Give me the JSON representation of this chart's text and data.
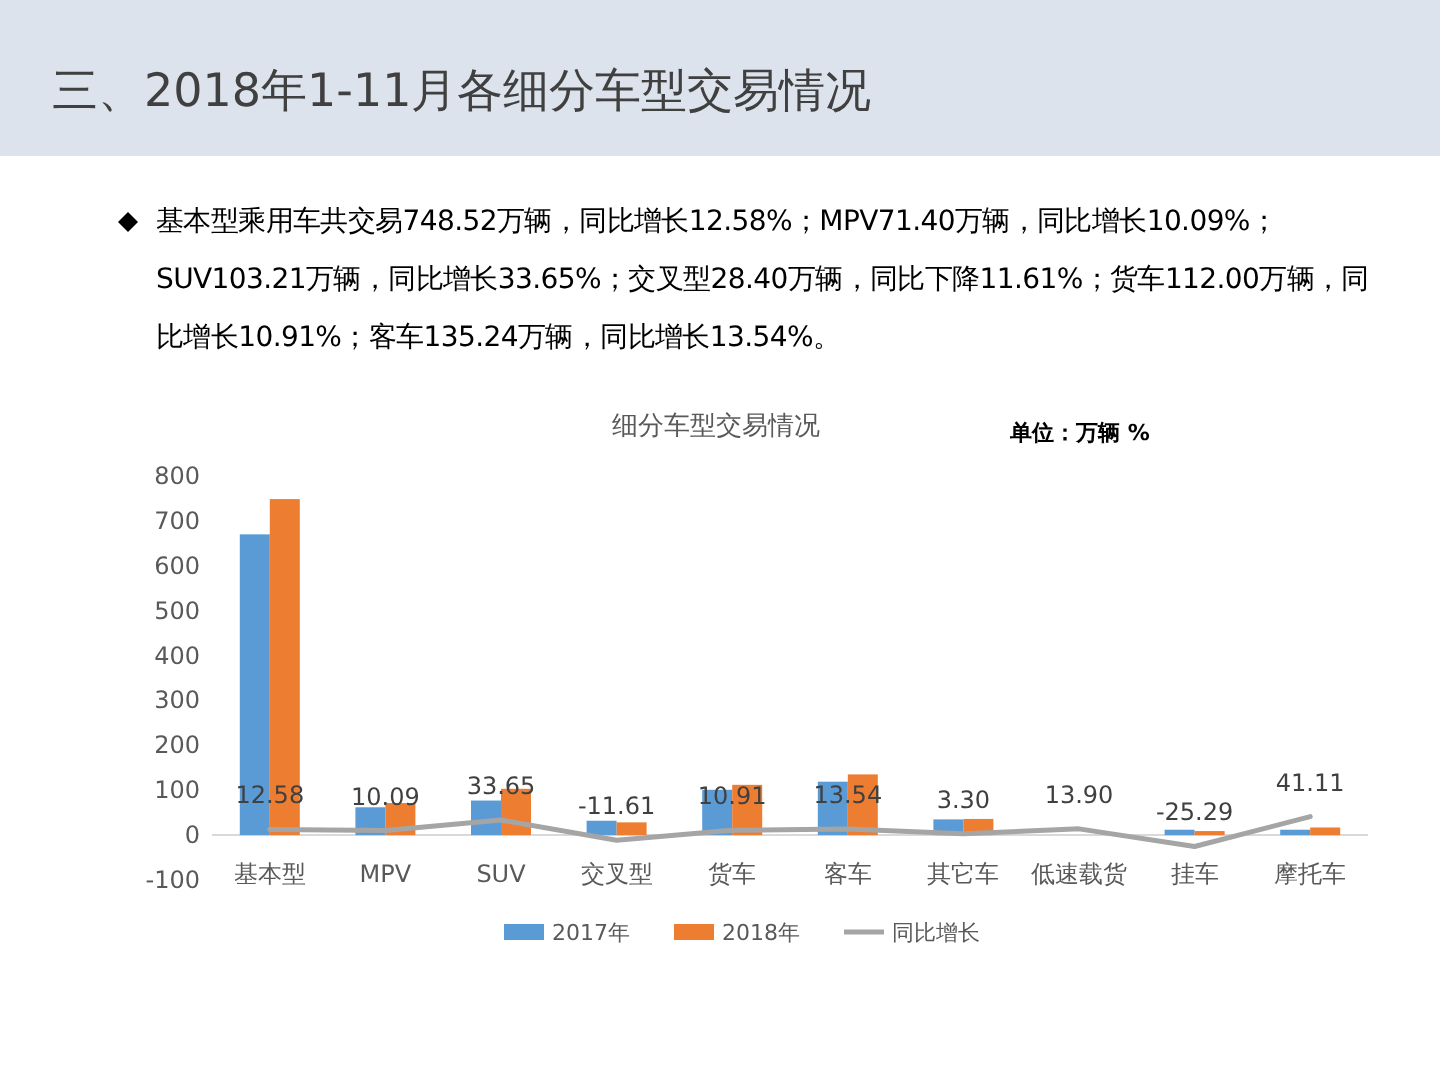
{
  "chart_data": {
    "type": "bar",
    "title": "三、2018年1-11月各细分车型交易情况",
    "subtitle": "细分车型交易情况",
    "annotations": [
      "基本型乘用车共交易748.52万辆，同比增长12.58%；MPV71.40万辆，同比增长10.09%；SUV103.21万辆，同比增长33.65%；交叉型28.40万辆，同比下降11.61%；货车112.00万辆，同比增长10.91%；客车135.24万辆，同比增长13.54%。",
      "单位：万辆  %"
    ],
    "categories": [
      "基本型",
      "MPV",
      "SUV",
      "交叉型",
      "货车",
      "客车",
      "其它车",
      "低速载货",
      "挂车",
      "摩托车"
    ],
    "series": [
      {
        "name": "2017年",
        "color": "#5b9bd5",
        "values": [
          670,
          62,
          77,
          32,
          101,
          119,
          35,
          null,
          12,
          12
        ]
      },
      {
        "name": "2018年",
        "color": "#ed7d31",
        "values": [
          748.52,
          71.4,
          103.21,
          28.4,
          112.0,
          135.24,
          36,
          null,
          9,
          17
        ]
      },
      {
        "name": "同比增长",
        "type": "line",
        "color": "#a5a5a5",
        "values": [
          12.58,
          10.09,
          33.65,
          -11.61,
          10.91,
          13.54,
          3.3,
          13.9,
          -25.29,
          41.11
        ],
        "value_labels": [
          "12.58",
          "10.09",
          "33.65",
          "-11.61",
          "10.91",
          "13.54",
          "3.30",
          "13.90",
          "-25.29",
          "41.11"
        ]
      }
    ],
    "ylim": [
      -100,
      800
    ],
    "yticks": [
      -100,
      0,
      100,
      200,
      300,
      400,
      500,
      600,
      700,
      800
    ],
    "grid": false,
    "legend": "bottom"
  }
}
